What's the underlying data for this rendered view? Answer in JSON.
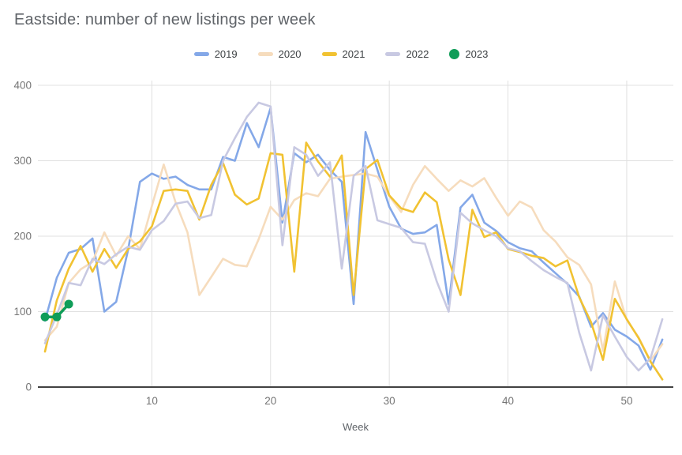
{
  "title": "Eastside: number of new listings per week",
  "chart_data": {
    "type": "line",
    "title": "Eastside: number of new listings per week",
    "xlabel": "Week",
    "ylabel": "",
    "xlim": [
      1,
      53
    ],
    "ylim": [
      0,
      400
    ],
    "x_ticks": [
      10,
      20,
      30,
      40,
      50
    ],
    "y_ticks": [
      0,
      100,
      200,
      300,
      400
    ],
    "grid": true,
    "legend_position": "top",
    "x_unit": "week number 1-53",
    "series": [
      {
        "name": "2019",
        "color": "#84a8e8",
        "style": "line",
        "values": [
          88,
          145,
          178,
          183,
          197,
          100,
          113,
          182,
          272,
          283,
          276,
          279,
          268,
          262,
          262,
          305,
          300,
          350,
          318,
          370,
          218,
          310,
          298,
          308,
          288,
          272,
          110,
          338,
          288,
          239,
          210,
          203,
          205,
          215,
          110,
          238,
          255,
          218,
          207,
          192,
          184,
          180,
          165,
          151,
          137,
          120,
          80,
          98,
          76,
          67,
          55,
          23,
          63
        ]
      },
      {
        "name": "2020",
        "color": "#f6dcbd",
        "style": "line",
        "values": [
          62,
          80,
          138,
          156,
          166,
          205,
          174,
          200,
          183,
          240,
          295,
          245,
          205,
          122,
          146,
          170,
          162,
          160,
          196,
          239,
          222,
          248,
          257,
          253,
          276,
          279,
          281,
          283,
          279,
          253,
          232,
          268,
          293,
          276,
          260,
          274,
          266,
          277,
          251,
          227,
          246,
          238,
          208,
          193,
          172,
          162,
          136,
          48,
          140,
          89,
          66,
          35,
          57
        ]
      },
      {
        "name": "2021",
        "color": "#f1c232",
        "style": "line",
        "values": [
          47,
          115,
          157,
          187,
          153,
          183,
          158,
          183,
          193,
          213,
          260,
          262,
          260,
          222,
          268,
          297,
          255,
          242,
          250,
          310,
          308,
          153,
          324,
          299,
          279,
          307,
          122,
          289,
          301,
          254,
          237,
          232,
          258,
          245,
          169,
          122,
          235,
          199,
          205,
          183,
          179,
          174,
          171,
          160,
          168,
          119,
          86,
          36,
          117,
          90,
          65,
          34,
          10
        ]
      },
      {
        "name": "2022",
        "color": "#c8c9e2",
        "style": "line",
        "values": [
          58,
          96,
          138,
          135,
          170,
          163,
          176,
          186,
          182,
          208,
          220,
          243,
          246,
          224,
          228,
          300,
          330,
          358,
          377,
          372,
          188,
          318,
          308,
          280,
          298,
          157,
          280,
          293,
          221,
          216,
          211,
          192,
          190,
          140,
          100,
          231,
          217,
          208,
          200,
          184,
          180,
          167,
          155,
          146,
          138,
          72,
          22,
          95,
          67,
          40,
          22,
          38,
          90
        ]
      },
      {
        "name": "2023",
        "color": "#0f9d58",
        "style": "line+points",
        "values": [
          93,
          93,
          110
        ]
      }
    ]
  },
  "colors": {
    "background": "#ffffff",
    "title_text": "#5f6368",
    "tick_text": "#757575",
    "legend_text": "#3c4043",
    "gridline": "#e0e0e0",
    "axis_baseline": "#424242"
  }
}
